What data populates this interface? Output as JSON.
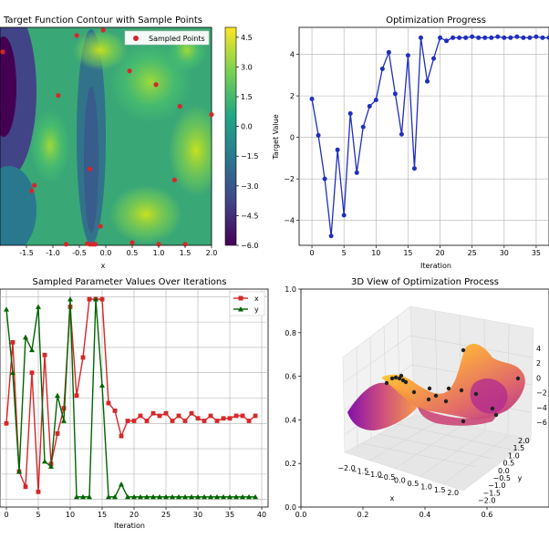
{
  "chart_data": [
    {
      "type": "contour",
      "title": "Target Function Contour with Sample Points",
      "xlabel": "x",
      "ylabel": "",
      "xlim": [
        -2.0,
        2.0
      ],
      "ylim": [
        -2.0,
        2.0
      ],
      "xticks": [
        "-1.5",
        "-1.0",
        "-0.5",
        "0.0",
        "0.5",
        "1.0",
        "1.5",
        "2.0"
      ],
      "xtick_values": [
        -1.5,
        -1.0,
        -0.5,
        0.0,
        0.5,
        1.0,
        1.5,
        2.0
      ],
      "legend": "Sampled Points",
      "colorbar_ticks": [
        "4.5",
        "3.0",
        "1.5",
        "0.0",
        "−1.5",
        "−3.0",
        "−4.5",
        "−6.0"
      ],
      "colorbar_values": [
        4.5,
        3.0,
        1.5,
        0.0,
        -1.5,
        -3.0,
        -4.5,
        -6.0
      ],
      "colorbar_range": [
        -6.0,
        5.0
      ],
      "points": [
        {
          "x": -1.95,
          "y": 1.55
        },
        {
          "x": -0.55,
          "y": 1.85
        },
        {
          "x": -0.05,
          "y": 1.95
        },
        {
          "x": 0.45,
          "y": 1.2
        },
        {
          "x": 0.95,
          "y": 0.95
        },
        {
          "x": -0.9,
          "y": 0.75
        },
        {
          "x": 1.4,
          "y": 0.55
        },
        {
          "x": -0.3,
          "y": -0.6
        },
        {
          "x": 1.3,
          "y": -0.8
        },
        {
          "x": -1.35,
          "y": -0.9
        },
        {
          "x": -1.4,
          "y": -1.0
        },
        {
          "x": -0.1,
          "y": -1.65
        },
        {
          "x": 0.5,
          "y": -1.95
        },
        {
          "x": 1.0,
          "y": -1.98
        },
        {
          "x": -0.75,
          "y": -1.98
        },
        {
          "x": -0.35,
          "y": -1.97
        },
        {
          "x": -0.3,
          "y": -1.98
        },
        {
          "x": -0.25,
          "y": -1.98
        },
        {
          "x": -0.2,
          "y": -1.98
        },
        {
          "x": 1.5,
          "y": -1.98
        },
        {
          "x": 2.0,
          "y": 0.4
        }
      ]
    },
    {
      "type": "line",
      "title": "Optimization Progress",
      "xlabel": "Iteration",
      "ylabel": "Target Value",
      "xlim": [
        -2,
        37
      ],
      "ylim": [
        -5.2,
        5.3
      ],
      "xticks": [
        "0",
        "5",
        "10",
        "15",
        "20",
        "25",
        "30",
        "35"
      ],
      "xtick_values": [
        0,
        5,
        10,
        15,
        20,
        25,
        30,
        35
      ],
      "yticks": [
        "4",
        "2",
        "0",
        "−2",
        "−4"
      ],
      "ytick_values": [
        4,
        2,
        0,
        -2,
        -4
      ],
      "x": [
        0,
        1,
        2,
        3,
        4,
        5,
        6,
        7,
        8,
        9,
        10,
        11,
        12,
        13,
        14,
        15,
        16,
        17,
        18,
        19,
        20,
        21,
        22,
        23,
        24,
        25,
        26,
        27,
        28,
        29,
        30,
        31,
        32,
        33,
        34,
        35,
        36,
        37
      ],
      "y": [
        1.85,
        0.1,
        -2.0,
        -4.75,
        -0.6,
        -3.75,
        1.15,
        -1.7,
        0.5,
        1.5,
        1.8,
        3.3,
        4.1,
        2.1,
        0.15,
        3.95,
        -1.5,
        4.8,
        2.7,
        3.8,
        4.8,
        4.65,
        4.8,
        4.8,
        4.8,
        4.85,
        4.8,
        4.8,
        4.8,
        4.85,
        4.8,
        4.8,
        4.85,
        4.8,
        4.8,
        4.85,
        4.8,
        4.8
      ]
    },
    {
      "type": "line",
      "title": "Sampled Parameter Values Over Iterations",
      "xlabel": "Iteration",
      "ylabel": "",
      "xlim": [
        -1,
        41
      ],
      "ylim": [
        -2.15,
        2.15
      ],
      "xticks": [
        "0",
        "5",
        "10",
        "15",
        "20",
        "25",
        "30",
        "35",
        "40"
      ],
      "xtick_values": [
        0,
        5,
        10,
        15,
        20,
        25,
        30,
        35,
        40
      ],
      "legend": "top-right",
      "series": [
        {
          "name": "x",
          "color": "#d62728",
          "values": [
            -0.5,
            1.1,
            -1.45,
            -1.75,
            0.5,
            -1.85,
            0.85,
            -1.3,
            -0.7,
            -0.2,
            1.8,
            0.05,
            0.8,
            1.95,
            1.95,
            1.95,
            -0.1,
            -0.25,
            -0.75,
            -0.45,
            -0.45,
            -0.35,
            -0.45,
            -0.3,
            -0.35,
            -0.3,
            -0.45,
            -0.35,
            -0.45,
            -0.3,
            -0.4,
            -0.45,
            -0.35,
            -0.45,
            -0.4,
            -0.4,
            -0.35,
            -0.35,
            -0.45,
            -0.35
          ]
        },
        {
          "name": "y",
          "color": "#006400",
          "values": [
            1.75,
            0.5,
            -1.45,
            1.2,
            0.95,
            1.8,
            -1.25,
            -1.35,
            0.05,
            -0.45,
            1.95,
            -1.95,
            -1.95,
            -1.95,
            1.95,
            0.25,
            -1.95,
            -1.95,
            -1.7,
            -1.95,
            -1.95,
            -1.95,
            -1.95,
            -1.95,
            -1.95,
            -1.95,
            -1.95,
            -1.95,
            -1.95,
            -1.95,
            -1.95,
            -1.95,
            -1.95,
            -1.95,
            -1.95,
            -1.95,
            -1.95,
            -1.95,
            -1.95,
            -1.95
          ]
        }
      ]
    },
    {
      "type": "surface3d",
      "title": "3D View of Optimization Process",
      "xlabel": "x",
      "ylabel": "y",
      "xlim": [
        0.0,
        0.8
      ],
      "ylim": [
        0.0,
        1.0
      ],
      "xticks": [
        "0.0",
        "0.2",
        "0.4",
        "0.6"
      ],
      "xtick_values": [
        0.0,
        0.2,
        0.4,
        0.6
      ],
      "yticks": [
        "0.0",
        "0.2",
        "0.4",
        "0.6",
        "0.8",
        "1.0"
      ],
      "ytick_values": [
        0.0,
        0.2,
        0.4,
        0.6,
        0.8,
        1.0
      ],
      "inner_xticks": [
        "−2.0",
        "−1.5",
        "−1.0",
        "−0.5",
        "0.0",
        "0.5",
        "1.0",
        "1.5",
        "2.0"
      ],
      "inner_yticks": [
        "2.0",
        "1.5",
        "1.0",
        "0.5",
        "0.0",
        "−0.5",
        "−1.0",
        "−1.5",
        "−2.0"
      ],
      "inner_zticks": [
        "4",
        "2",
        "0",
        "−2",
        "−4",
        "−6"
      ]
    }
  ]
}
